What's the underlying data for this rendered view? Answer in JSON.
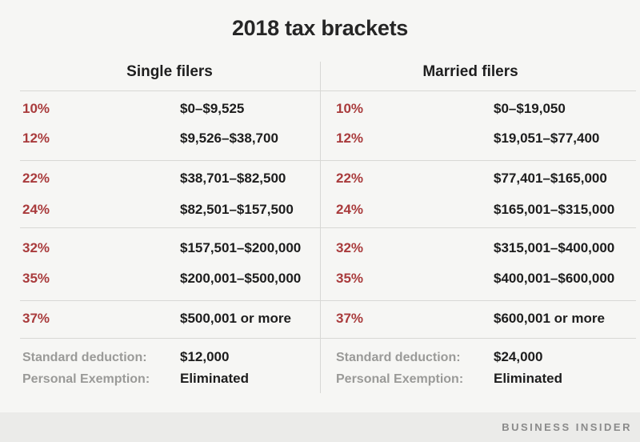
{
  "title": "2018 tax brackets",
  "chart_data": {
    "type": "table",
    "title": "2018 tax brackets",
    "columns": [
      {
        "header": "Single filers",
        "brackets": [
          {
            "rate": "10%",
            "range": "$0–$9,525"
          },
          {
            "rate": "12%",
            "range": "$9,526–$38,700"
          },
          {
            "rate": "22%",
            "range": "$38,701–$82,500"
          },
          {
            "rate": "24%",
            "range": "$82,501–$157,500"
          },
          {
            "rate": "32%",
            "range": "$157,501–$200,000"
          },
          {
            "rate": "35%",
            "range": "$200,001–$500,000"
          },
          {
            "rate": "37%",
            "range": "$500,001 or more"
          }
        ],
        "standard_deduction": "$12,000",
        "personal_exemption": "Eliminated"
      },
      {
        "header": "Married filers",
        "brackets": [
          {
            "rate": "10%",
            "range": "$0–$19,050"
          },
          {
            "rate": "12%",
            "range": "$19,051–$77,400"
          },
          {
            "rate": "22%",
            "range": "$77,401–$165,000"
          },
          {
            "rate": "24%",
            "range": "$165,001–$315,000"
          },
          {
            "rate": "32%",
            "range": "$315,001–$400,000"
          },
          {
            "rate": "35%",
            "range": "$400,001–$600,000"
          },
          {
            "rate": "37%",
            "range": "$600,001 or more"
          }
        ],
        "standard_deduction": "$24,000",
        "personal_exemption": "Eliminated"
      }
    ],
    "row_labels": {
      "standard_deduction": "Standard deduction:",
      "personal_exemption": "Personal Exemption:"
    },
    "layout": {
      "grid": "off",
      "group_separators_after_rows": [
        1,
        3,
        5,
        6
      ]
    }
  },
  "footer": {
    "brand": "BUSINESS INSIDER"
  },
  "colors": {
    "background": "#f6f6f4",
    "accent_red": "#a93b3c",
    "text_dark": "#1d1d1d",
    "label_gray": "#9a9a98",
    "divider": "#d8d8d5",
    "footer_background": "#ebebe9",
    "footer_text": "#8a8a8a"
  }
}
